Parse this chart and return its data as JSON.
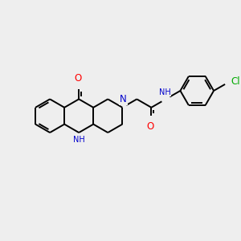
{
  "bg": "#eeeeee",
  "bond_color": "#000000",
  "bond_lw": 1.4,
  "atom_colors": {
    "N": "#0000cc",
    "O": "#ff0000",
    "Cl": "#00aa00"
  },
  "fs_main": 8.5,
  "fs_sub": 7.0,
  "bl": 0.72
}
